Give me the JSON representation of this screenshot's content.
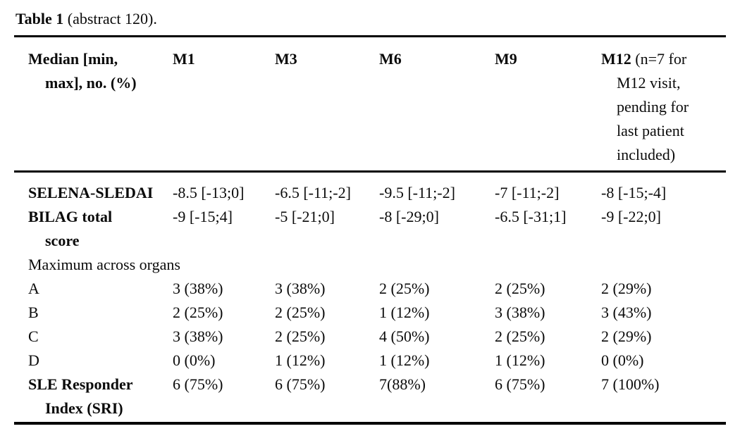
{
  "caption": {
    "title": "Table 1",
    "suffix": " (abstract 120)."
  },
  "table": {
    "header": {
      "col0": "Median [min,\nmax], no. (%)",
      "columns": [
        {
          "label": "M1",
          "note": ""
        },
        {
          "label": "M3",
          "note": ""
        },
        {
          "label": "M6",
          "note": ""
        },
        {
          "label": "M9",
          "note": ""
        },
        {
          "label": "M12",
          "note": " (n=7 for\nM12 visit,\npending for\nlast patient\nincluded)"
        }
      ]
    },
    "rows": [
      {
        "label": "SELENA-SLEDAI",
        "values": [
          "-8.5 [-13;0]",
          "-6.5 [-11;-2]",
          "-9.5 [-11;-2]",
          "-7 [-11;-2]",
          "-8 [-15;-4]"
        ]
      },
      {
        "label": "BILAG total\nscore",
        "values": [
          "-9 [-15;4]",
          "-5 [-21;0]",
          "-8 [-29;0]",
          "-6.5 [-31;1]",
          "-9 [-22;0]"
        ]
      },
      {
        "label": "Maximum across organs",
        "values": []
      },
      {
        "label": "A",
        "values": [
          "3 (38%)",
          "3 (38%)",
          "2 (25%)",
          "2 (25%)",
          "2 (29%)"
        ]
      },
      {
        "label": "B",
        "values": [
          "2 (25%)",
          "2 (25%)",
          "1 (12%)",
          "3 (38%)",
          "3 (43%)"
        ]
      },
      {
        "label": "C",
        "values": [
          "3 (38%)",
          "2 (25%)",
          "4 (50%)",
          "2 (25%)",
          "2 (29%)"
        ]
      },
      {
        "label": "D",
        "values": [
          "0 (0%)",
          "1 (12%)",
          "1 (12%)",
          "1 (12%)",
          "0 (0%)"
        ]
      },
      {
        "label": "SLE Responder\nIndex (SRI)",
        "values": [
          "6 (75%)",
          "6 (75%)",
          "7(88%)",
          "6 (75%)",
          "7 (100%)"
        ]
      }
    ]
  },
  "colors": {
    "text": "#000000",
    "background": "#ffffff",
    "rule": "#000000"
  }
}
